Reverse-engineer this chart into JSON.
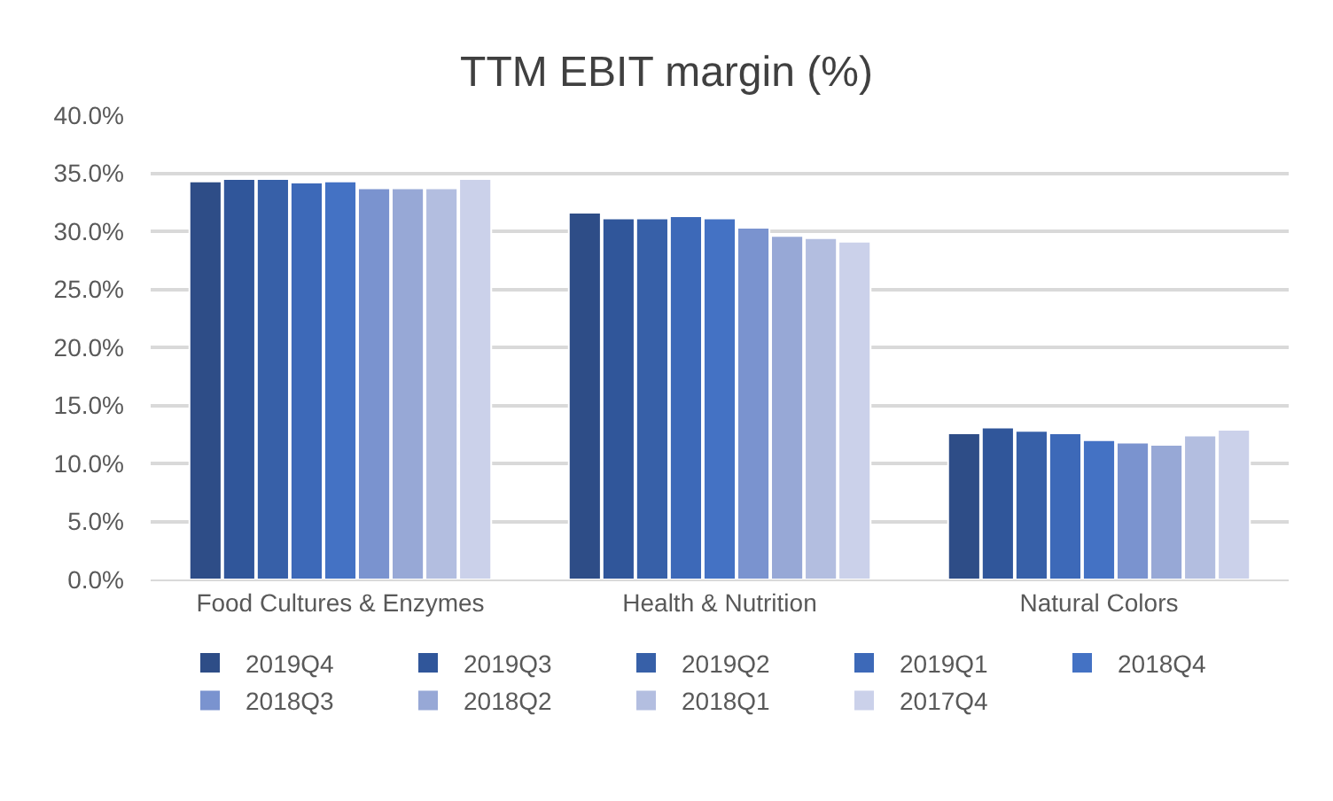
{
  "chart_data": {
    "type": "bar",
    "title": "TTM EBIT margin (%)",
    "categories": [
      "Food Cultures & Enzymes",
      "Health & Nutrition",
      "Natural Colors"
    ],
    "series": [
      {
        "name": "2019Q4",
        "color": "#2e4d87",
        "values": [
          34.3,
          31.6,
          12.6
        ]
      },
      {
        "name": "2019Q3",
        "color": "#30569a",
        "values": [
          34.5,
          31.1,
          13.1
        ]
      },
      {
        "name": "2019Q2",
        "color": "#3760a8",
        "values": [
          34.5,
          31.1,
          12.8
        ]
      },
      {
        "name": "2019Q1",
        "color": "#3d69b8",
        "values": [
          34.2,
          31.3,
          12.6
        ]
      },
      {
        "name": "2018Q4",
        "color": "#4472c4",
        "values": [
          34.3,
          31.1,
          12.0
        ]
      },
      {
        "name": "2018Q3",
        "color": "#7a93cf",
        "values": [
          33.7,
          30.3,
          11.8
        ]
      },
      {
        "name": "2018Q2",
        "color": "#97a8d6",
        "values": [
          33.7,
          29.6,
          11.6
        ]
      },
      {
        "name": "2018Q1",
        "color": "#b3bee0",
        "values": [
          33.7,
          29.4,
          12.4
        ]
      },
      {
        "name": "2017Q4",
        "color": "#cbd1ea",
        "values": [
          34.5,
          29.1,
          12.9
        ]
      }
    ],
    "ylim": [
      0,
      40
    ],
    "yticks": [
      {
        "value": 0,
        "label": "0.0%"
      },
      {
        "value": 5,
        "label": "5.0%"
      },
      {
        "value": 10,
        "label": "10.0%"
      },
      {
        "value": 15,
        "label": "15.0%"
      },
      {
        "value": 20,
        "label": "20.0%"
      },
      {
        "value": 25,
        "label": "25.0%"
      },
      {
        "value": 30,
        "label": "30.0%"
      },
      {
        "value": 35,
        "label": "35.0%"
      },
      {
        "value": 40,
        "label": "40.0%"
      }
    ],
    "grid": "y",
    "legend": "bottom"
  }
}
